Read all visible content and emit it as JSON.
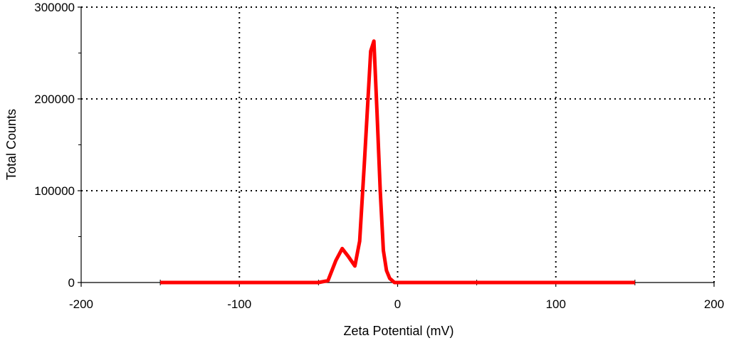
{
  "chart_data": {
    "type": "line",
    "title": "",
    "xlabel": "Zeta Potential (mV)",
    "ylabel": "Total Counts",
    "xlim": [
      -200,
      200
    ],
    "ylim": [
      0,
      300000
    ],
    "x_ticks": [
      -200,
      -100,
      0,
      100,
      200
    ],
    "x_tick_labels": [
      "-200",
      "-100",
      "0",
      "100",
      "200"
    ],
    "y_ticks": [
      0,
      100000,
      200000,
      300000
    ],
    "y_tick_labels": [
      "0",
      "100000",
      "200000",
      "300000"
    ],
    "grid": true,
    "legend": "none",
    "series": [
      {
        "color": "#ff0000",
        "x": [
          -150,
          -100,
          -50,
          -44,
          -39,
          -35,
          -31,
          -27,
          -24,
          -21,
          -17,
          -15,
          -13,
          -11,
          -9,
          -7,
          -5,
          -2,
          0,
          50,
          100,
          150
        ],
        "y": [
          0,
          0,
          0,
          2000,
          24000,
          37000,
          28000,
          18000,
          45000,
          130000,
          252000,
          263000,
          185000,
          100000,
          35000,
          13000,
          4500,
          0,
          0,
          0,
          0,
          0
        ]
      }
    ]
  }
}
